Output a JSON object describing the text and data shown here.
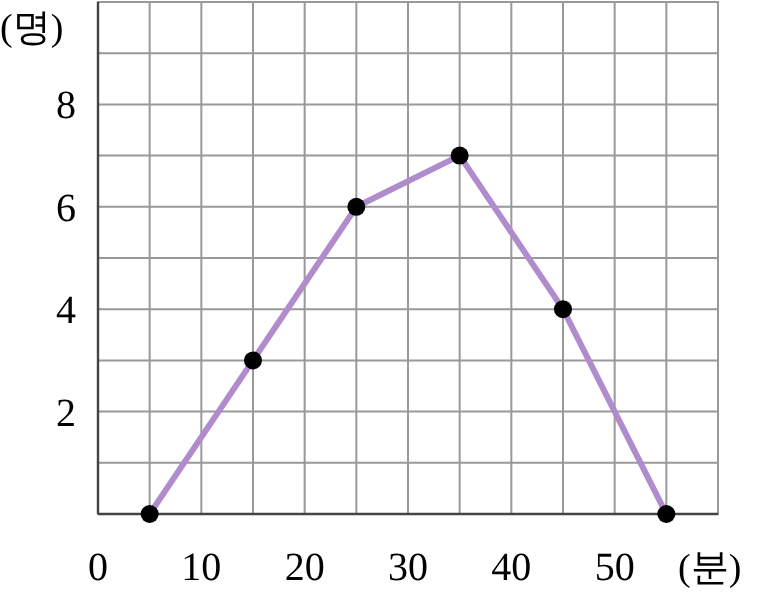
{
  "chart_data": {
    "type": "line",
    "xlabel": "(분)",
    "ylabel": "(명)",
    "x": [
      5,
      15,
      25,
      35,
      45,
      55
    ],
    "series": [
      {
        "color": "#b08ccc",
        "values": [
          0,
          3,
          6,
          7,
          4,
          0
        ]
      }
    ],
    "marker": "circle",
    "grid": true,
    "xlim": [
      0,
      60
    ],
    "ylim": [
      0,
      10
    ],
    "xticks": [
      0,
      {
        "value": 5,
        "label": null
      },
      10,
      {
        "value": 15,
        "label": null
      },
      20,
      {
        "value": 25,
        "label": null
      },
      30,
      {
        "value": 35,
        "label": null
      },
      40,
      {
        "value": 45,
        "label": null
      },
      50,
      {
        "value": 55,
        "label": null
      }
    ],
    "yticks": [
      {
        "value": 1,
        "label": null
      },
      2,
      {
        "value": 3,
        "label": null
      },
      4,
      {
        "value": 5,
        "label": null
      },
      6,
      {
        "value": 7,
        "label": null
      },
      8,
      {
        "value": 9,
        "label": null
      }
    ]
  }
}
